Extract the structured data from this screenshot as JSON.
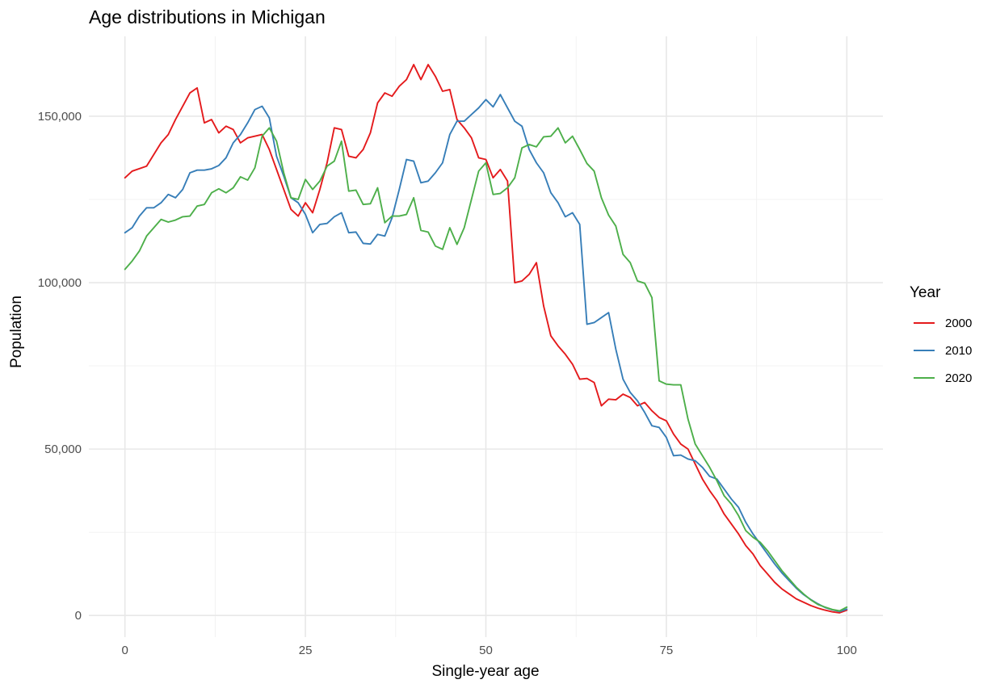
{
  "chart_data": {
    "type": "line",
    "title": "Age distributions in Michigan",
    "xlabel": "Single-year age",
    "ylabel": "Population",
    "xlim": [
      0,
      100
    ],
    "ylim": [
      0,
      165000
    ],
    "x_ticks": [
      0,
      25,
      50,
      75,
      100
    ],
    "x_tick_labels": [
      "0",
      "25",
      "50",
      "75",
      "100"
    ],
    "y_ticks": [
      0,
      50000,
      100000,
      150000
    ],
    "y_tick_labels": [
      "0",
      "50,000",
      "100,000",
      "150,000"
    ],
    "grid": true,
    "legend": {
      "title": "Year",
      "position": "right"
    },
    "series": [
      {
        "name": "2000",
        "color": "#e41a1c",
        "anchors": [
          [
            0,
            131500
          ],
          [
            1,
            133500
          ],
          [
            3,
            135000
          ],
          [
            5,
            142000
          ],
          [
            6,
            144500
          ],
          [
            7,
            149000
          ],
          [
            9,
            157000
          ],
          [
            10,
            158500
          ],
          [
            11,
            148000
          ],
          [
            12,
            149000
          ],
          [
            13,
            145000
          ],
          [
            14,
            147000
          ],
          [
            15,
            146000
          ],
          [
            16,
            142000
          ],
          [
            17,
            143500
          ],
          [
            19,
            144500
          ],
          [
            20,
            140000
          ],
          [
            21,
            134000
          ],
          [
            22,
            128000
          ],
          [
            23,
            122000
          ],
          [
            24,
            120000
          ],
          [
            25,
            124000
          ],
          [
            26,
            121000
          ],
          [
            27,
            128000
          ],
          [
            28,
            136000
          ],
          [
            29,
            146500
          ],
          [
            30,
            146000
          ],
          [
            31,
            138000
          ],
          [
            32,
            137500
          ],
          [
            33,
            140000
          ],
          [
            34,
            145000
          ],
          [
            35,
            154000
          ],
          [
            36,
            157000
          ],
          [
            37,
            156000
          ],
          [
            38,
            159000
          ],
          [
            39,
            161000
          ],
          [
            40,
            165500
          ],
          [
            41,
            161000
          ],
          [
            42,
            165500
          ],
          [
            43,
            162000
          ],
          [
            44,
            157500
          ],
          [
            45,
            158000
          ],
          [
            46,
            149000
          ],
          [
            47,
            146500
          ],
          [
            48,
            143500
          ],
          [
            49,
            137500
          ],
          [
            50,
            137000
          ],
          [
            51,
            131500
          ],
          [
            52,
            134000
          ],
          [
            53,
            130500
          ],
          [
            54,
            100000
          ],
          [
            55,
            100500
          ],
          [
            56,
            102500
          ],
          [
            57,
            106000
          ],
          [
            58,
            93000
          ],
          [
            59,
            84000
          ],
          [
            60,
            81000
          ],
          [
            61,
            78500
          ],
          [
            62,
            75500
          ],
          [
            63,
            71000
          ],
          [
            64,
            71200
          ],
          [
            65,
            70000
          ],
          [
            66,
            63000
          ],
          [
            67,
            65000
          ],
          [
            68,
            64800
          ],
          [
            69,
            66500
          ],
          [
            70,
            65500
          ],
          [
            71,
            63000
          ],
          [
            72,
            64000
          ],
          [
            73,
            61500
          ],
          [
            74,
            59500
          ],
          [
            75,
            58500
          ],
          [
            76,
            54500
          ],
          [
            77,
            51500
          ],
          [
            78,
            50000
          ],
          [
            79,
            45500
          ],
          [
            80,
            41000
          ],
          [
            81,
            37500
          ],
          [
            82,
            34500
          ],
          [
            83,
            30500
          ],
          [
            84,
            27500
          ],
          [
            85,
            24500
          ],
          [
            86,
            21000
          ],
          [
            87,
            18500
          ],
          [
            88,
            15000
          ],
          [
            89,
            12500
          ],
          [
            90,
            10000
          ],
          [
            91,
            8000
          ],
          [
            92,
            6500
          ],
          [
            93,
            5000
          ],
          [
            94,
            4000
          ],
          [
            95,
            3000
          ],
          [
            96,
            2200
          ],
          [
            97,
            1600
          ],
          [
            98,
            1100
          ],
          [
            99,
            800
          ],
          [
            100,
            1600
          ]
        ]
      },
      {
        "name": "2010",
        "color": "#377eb8",
        "anchors": [
          [
            0,
            115000
          ],
          [
            1,
            116500
          ],
          [
            2,
            120000
          ],
          [
            3,
            122500
          ],
          [
            4,
            122500
          ],
          [
            5,
            124000
          ],
          [
            6,
            126500
          ],
          [
            7,
            125500
          ],
          [
            8,
            128000
          ],
          [
            9,
            133000
          ],
          [
            10,
            133800
          ],
          [
            11,
            133800
          ],
          [
            12,
            134200
          ],
          [
            13,
            135200
          ],
          [
            14,
            137500
          ],
          [
            15,
            142000
          ],
          [
            16,
            144500
          ],
          [
            17,
            148000
          ],
          [
            18,
            152000
          ],
          [
            19,
            153000
          ],
          [
            20,
            149500
          ],
          [
            21,
            138000
          ],
          [
            22,
            132000
          ],
          [
            23,
            125500
          ],
          [
            24,
            124000
          ],
          [
            25,
            120500
          ],
          [
            26,
            115000
          ],
          [
            27,
            117500
          ],
          [
            28,
            117800
          ],
          [
            29,
            119800
          ],
          [
            30,
            121000
          ],
          [
            31,
            115000
          ],
          [
            32,
            115200
          ],
          [
            33,
            111800
          ],
          [
            34,
            111600
          ],
          [
            35,
            114500
          ],
          [
            36,
            114000
          ],
          [
            37,
            119500
          ],
          [
            38,
            128000
          ],
          [
            39,
            137000
          ],
          [
            40,
            136500
          ],
          [
            41,
            130000
          ],
          [
            42,
            130500
          ],
          [
            43,
            133000
          ],
          [
            44,
            136000
          ],
          [
            45,
            144500
          ],
          [
            46,
            148500
          ],
          [
            47,
            148500
          ],
          [
            48,
            150500
          ],
          [
            49,
            152500
          ],
          [
            50,
            155000
          ],
          [
            51,
            152800
          ],
          [
            52,
            156500
          ],
          [
            53,
            152500
          ],
          [
            54,
            148500
          ],
          [
            55,
            147000
          ],
          [
            56,
            140000
          ],
          [
            57,
            136000
          ],
          [
            58,
            133000
          ],
          [
            59,
            127000
          ],
          [
            60,
            124000
          ],
          [
            61,
            119800
          ],
          [
            62,
            121000
          ],
          [
            63,
            117500
          ],
          [
            64,
            87500
          ],
          [
            65,
            88000
          ],
          [
            66,
            89500
          ],
          [
            67,
            91000
          ],
          [
            68,
            80000
          ],
          [
            69,
            71000
          ],
          [
            70,
            67000
          ],
          [
            71,
            64500
          ],
          [
            72,
            61000
          ],
          [
            73,
            57000
          ],
          [
            74,
            56500
          ],
          [
            75,
            53500
          ],
          [
            76,
            48000
          ],
          [
            77,
            48200
          ],
          [
            78,
            47000
          ],
          [
            79,
            46500
          ],
          [
            80,
            44500
          ],
          [
            81,
            41800
          ],
          [
            82,
            41000
          ],
          [
            83,
            38000
          ],
          [
            84,
            35000
          ],
          [
            85,
            32500
          ],
          [
            86,
            28000
          ],
          [
            87,
            24500
          ],
          [
            88,
            21500
          ],
          [
            89,
            18500
          ],
          [
            90,
            15500
          ],
          [
            91,
            12800
          ],
          [
            92,
            10500
          ],
          [
            93,
            8200
          ],
          [
            94,
            6300
          ],
          [
            95,
            4800
          ],
          [
            96,
            3500
          ],
          [
            97,
            2400
          ],
          [
            98,
            1700
          ],
          [
            99,
            1200
          ],
          [
            100,
            1900
          ]
        ]
      },
      {
        "name": "2020",
        "color": "#4daf4a",
        "anchors": [
          [
            0,
            104000
          ],
          [
            1,
            106500
          ],
          [
            2,
            109500
          ],
          [
            3,
            114000
          ],
          [
            4,
            116500
          ],
          [
            5,
            119000
          ],
          [
            6,
            118200
          ],
          [
            7,
            118800
          ],
          [
            8,
            119800
          ],
          [
            9,
            120000
          ],
          [
            10,
            123000
          ],
          [
            11,
            123500
          ],
          [
            12,
            127000
          ],
          [
            13,
            128200
          ],
          [
            14,
            127000
          ],
          [
            15,
            128500
          ],
          [
            16,
            131800
          ],
          [
            17,
            130800
          ],
          [
            18,
            134500
          ],
          [
            19,
            144000
          ],
          [
            20,
            146500
          ],
          [
            21,
            142500
          ],
          [
            22,
            133000
          ],
          [
            23,
            125500
          ],
          [
            24,
            125000
          ],
          [
            25,
            131000
          ],
          [
            26,
            128000
          ],
          [
            27,
            130500
          ],
          [
            28,
            135000
          ],
          [
            29,
            136500
          ],
          [
            30,
            142500
          ],
          [
            31,
            127500
          ],
          [
            32,
            127800
          ],
          [
            33,
            123500
          ],
          [
            34,
            123700
          ],
          [
            35,
            128500
          ],
          [
            36,
            118000
          ],
          [
            37,
            120000
          ],
          [
            38,
            120000
          ],
          [
            39,
            120500
          ],
          [
            40,
            125500
          ],
          [
            41,
            115700
          ],
          [
            42,
            115200
          ],
          [
            43,
            111000
          ],
          [
            44,
            110000
          ],
          [
            45,
            116500
          ],
          [
            46,
            111500
          ],
          [
            47,
            116500
          ],
          [
            48,
            125000
          ],
          [
            49,
            133500
          ],
          [
            50,
            136000
          ],
          [
            51,
            126500
          ],
          [
            52,
            126800
          ],
          [
            53,
            128500
          ],
          [
            54,
            131500
          ],
          [
            55,
            140500
          ],
          [
            56,
            141500
          ],
          [
            57,
            140800
          ],
          [
            58,
            143800
          ],
          [
            59,
            144000
          ],
          [
            60,
            146500
          ],
          [
            61,
            142000
          ],
          [
            62,
            144000
          ],
          [
            63,
            140000
          ],
          [
            64,
            135800
          ],
          [
            65,
            133500
          ],
          [
            66,
            125500
          ],
          [
            67,
            120300
          ],
          [
            68,
            117000
          ],
          [
            69,
            108500
          ],
          [
            70,
            106000
          ],
          [
            71,
            100500
          ],
          [
            72,
            99800
          ],
          [
            73,
            95500
          ],
          [
            74,
            70500
          ],
          [
            75,
            69500
          ],
          [
            76,
            69300
          ],
          [
            77,
            69300
          ],
          [
            78,
            59000
          ],
          [
            79,
            51500
          ],
          [
            80,
            48000
          ],
          [
            81,
            44500
          ],
          [
            82,
            40500
          ],
          [
            83,
            36000
          ],
          [
            84,
            33500
          ],
          [
            85,
            30000
          ],
          [
            86,
            25500
          ],
          [
            87,
            23500
          ],
          [
            88,
            22000
          ],
          [
            89,
            19500
          ],
          [
            90,
            16500
          ],
          [
            91,
            13500
          ],
          [
            92,
            11000
          ],
          [
            93,
            8500
          ],
          [
            94,
            6500
          ],
          [
            95,
            4700
          ],
          [
            96,
            3300
          ],
          [
            97,
            2500
          ],
          [
            98,
            1800
          ],
          [
            99,
            1400
          ],
          [
            100,
            2500
          ]
        ]
      }
    ]
  }
}
